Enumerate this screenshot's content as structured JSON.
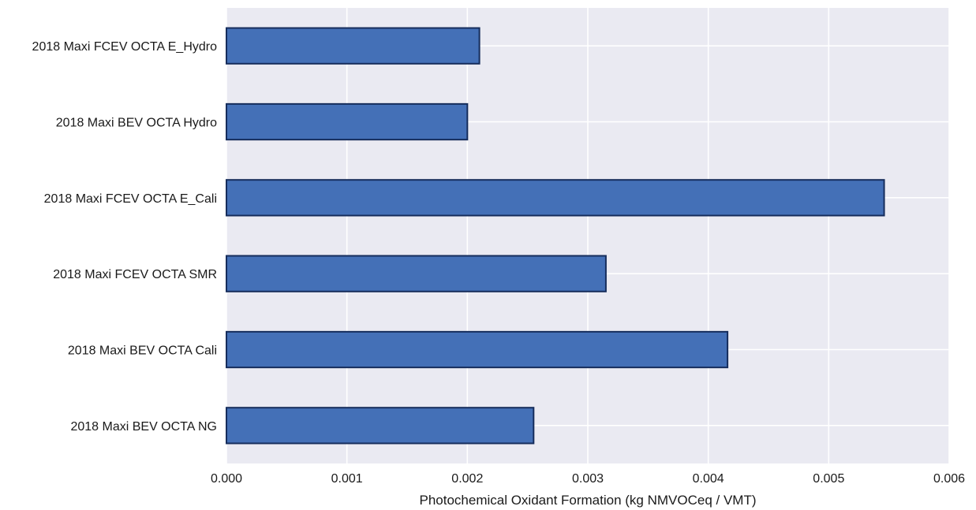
{
  "chart_data": {
    "type": "bar",
    "orientation": "horizontal",
    "categories": [
      "2018 Maxi FCEV OCTA E_Hydro",
      "2018 Maxi BEV OCTA Hydro",
      "2018 Maxi FCEV OCTA E_Cali",
      "2018 Maxi FCEV OCTA SMR",
      "2018 Maxi BEV OCTA Cali",
      "2018 Maxi BEV OCTA NG"
    ],
    "values": [
      0.0021,
      0.002,
      0.00546,
      0.00315,
      0.00416,
      0.00255
    ],
    "title": "",
    "xlabel": "Photochemical Oxidant Formation (kg NMVOCeq / VMT)",
    "ylabel": "",
    "xlim": [
      0,
      0.006
    ],
    "xticks": [
      "0.000",
      "0.001",
      "0.002",
      "0.003",
      "0.004",
      "0.005",
      "0.006"
    ],
    "grid": true,
    "legend": "none",
    "colors": {
      "bar_fill": "#4470b7",
      "bar_edge": "#162d5c",
      "plot_background": "#eaeaf2",
      "grid": "#ffffff"
    }
  }
}
